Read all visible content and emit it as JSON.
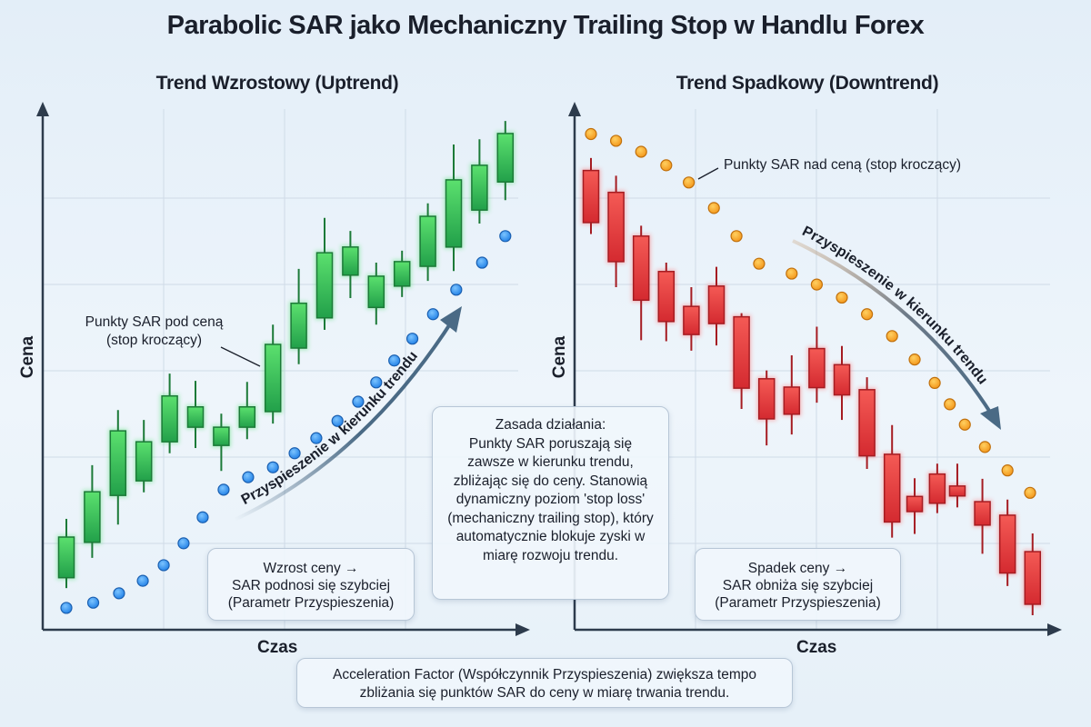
{
  "title": "Parabolic SAR jako Mechaniczny Trailing Stop w Handlu Forex",
  "colors": {
    "bullish": "#3cc75a",
    "bearish": "#e8383a",
    "sar_up": "#2b8ef0",
    "sar_down": "#f5a020",
    "axis": "#2d3b4c",
    "arrow": "#4a6a85"
  },
  "boxes": {
    "principle_title": "Zasada działania:",
    "principle_text": "Punkty SAR poruszają się zawsze w kierunku trendu, zbliżając się do ceny. Stanowią dynamiczny poziom 'stop loss' (mechaniczny trailing stop), który automatycznie blokuje zyski w miarę rozwoju trendu.",
    "footer": "Acceleration Factor (Współczynnik Przyspieszenia) zwiększa tempo zbliżania się punktów SAR do ceny w miarę trwania trendu."
  },
  "chart_data": [
    {
      "type": "candlestick",
      "title": "Trend Wzrostowy (Uptrend)",
      "xlabel": "Czas",
      "ylabel": "Cena",
      "annotation": "Punkty SAR pod ceną (stop kroczący)",
      "arrow_label": "Przyspieszenie w kierunku trendu",
      "note_lines": [
        "Wzrost ceny →",
        "SAR podnosi się szybciej",
        "(Parametr Przyspieszenia)"
      ],
      "grid": true,
      "ylim": [
        0,
        100
      ],
      "candles": [
        {
          "t": 0,
          "o": 10.0,
          "h": 21.3,
          "l": 8.0,
          "c": 17.8
        },
        {
          "t": 1,
          "o": 16.8,
          "h": 31.6,
          "l": 13.8,
          "c": 26.5
        },
        {
          "t": 2,
          "o": 25.8,
          "h": 42.2,
          "l": 20.2,
          "c": 38.2
        },
        {
          "t": 3,
          "o": 28.6,
          "h": 40.3,
          "l": 26.4,
          "c": 36.1
        },
        {
          "t": 4,
          "o": 36.1,
          "h": 49.2,
          "l": 33.9,
          "c": 44.9
        },
        {
          "t": 5,
          "o": 38.9,
          "h": 47.8,
          "l": 34.9,
          "c": 42.8
        },
        {
          "t": 6,
          "o": 35.4,
          "h": 41.5,
          "l": 30.5,
          "c": 38.9
        },
        {
          "t": 7,
          "o": 38.9,
          "h": 47.6,
          "l": 36.6,
          "c": 42.8
        },
        {
          "t": 8,
          "o": 41.9,
          "h": 58.6,
          "l": 39.6,
          "c": 54.8
        },
        {
          "t": 9,
          "o": 54.1,
          "h": 69.3,
          "l": 51.0,
          "c": 62.7
        },
        {
          "t": 10,
          "o": 59.9,
          "h": 79.1,
          "l": 57.6,
          "c": 72.4
        },
        {
          "t": 11,
          "o": 68.1,
          "h": 76.6,
          "l": 63.7,
          "c": 73.5
        },
        {
          "t": 12,
          "o": 61.9,
          "h": 70.5,
          "l": 58.6,
          "c": 67.9
        },
        {
          "t": 13,
          "o": 66.0,
          "h": 72.8,
          "l": 63.9,
          "c": 70.7
        },
        {
          "t": 14,
          "o": 69.8,
          "h": 81.9,
          "l": 67.0,
          "c": 79.4
        },
        {
          "t": 15,
          "o": 73.5,
          "h": 93.2,
          "l": 68.9,
          "c": 86.4
        },
        {
          "t": 16,
          "o": 80.6,
          "h": 94.2,
          "l": 78.0,
          "c": 89.2
        },
        {
          "t": 17,
          "o": 86.0,
          "h": 97.7,
          "l": 82.5,
          "c": 95.3
        }
      ],
      "sar": [
        {
          "t": 0,
          "v": 4.2
        },
        {
          "t": 1.04,
          "v": 5.2
        },
        {
          "t": 2.04,
          "v": 7.0
        },
        {
          "t": 2.96,
          "v": 9.4
        },
        {
          "t": 3.77,
          "v": 12.4
        },
        {
          "t": 4.54,
          "v": 16.6
        },
        {
          "t": 5.28,
          "v": 21.6
        },
        {
          "t": 6.09,
          "v": 26.9
        },
        {
          "t": 7.04,
          "v": 29.3
        },
        {
          "t": 8.0,
          "v": 31.2
        },
        {
          "t": 8.84,
          "v": 33.9
        },
        {
          "t": 9.68,
          "v": 36.8
        },
        {
          "t": 10.5,
          "v": 40.1
        },
        {
          "t": 11.3,
          "v": 43.8
        },
        {
          "t": 12.0,
          "v": 47.5
        },
        {
          "t": 12.7,
          "v": 51.7
        },
        {
          "t": 13.4,
          "v": 55.9
        },
        {
          "t": 14.2,
          "v": 60.6
        },
        {
          "t": 15.1,
          "v": 65.3
        },
        {
          "t": 16.1,
          "v": 70.5
        },
        {
          "t": 17.0,
          "v": 75.6
        }
      ]
    },
    {
      "type": "candlestick",
      "title": "Trend Spadkowy (Downtrend)",
      "xlabel": "Czas",
      "ylabel": "Cena",
      "annotation": "Punkty SAR nad ceną (stop kroczący)",
      "arrow_label": "Przyspieszenie w kierunku trendu",
      "note_lines": [
        "Spadek ceny →",
        "SAR obniża się szybciej",
        "(Parametr Przyspieszenia)"
      ],
      "grid": true,
      "ylim": [
        0,
        100
      ],
      "candles": [
        {
          "t": 0,
          "o": 88.2,
          "h": 90.6,
          "l": 76.0,
          "c": 78.2
        },
        {
          "t": 1,
          "o": 84.0,
          "h": 87.2,
          "l": 65.8,
          "c": 70.7
        },
        {
          "t": 2,
          "o": 75.6,
          "h": 77.6,
          "l": 55.6,
          "c": 63.3
        },
        {
          "t": 3,
          "o": 68.8,
          "h": 70.5,
          "l": 55.4,
          "c": 59.2
        },
        {
          "t": 4,
          "o": 62.1,
          "h": 65.8,
          "l": 53.6,
          "c": 56.7
        },
        {
          "t": 5,
          "o": 66.0,
          "h": 69.7,
          "l": 54.6,
          "c": 58.8
        },
        {
          "t": 6,
          "o": 60.1,
          "h": 60.8,
          "l": 42.4,
          "c": 46.4
        },
        {
          "t": 7,
          "o": 48.2,
          "h": 49.8,
          "l": 35.4,
          "c": 40.5
        },
        {
          "t": 8,
          "o": 46.6,
          "h": 52.7,
          "l": 37.5,
          "c": 41.4
        },
        {
          "t": 9,
          "o": 54.0,
          "h": 58.2,
          "l": 43.6,
          "c": 46.5
        },
        {
          "t": 10,
          "o": 50.9,
          "h": 54.5,
          "l": 40.3,
          "c": 45.1
        },
        {
          "t": 11,
          "o": 46.1,
          "h": 48.5,
          "l": 30.9,
          "c": 33.4
        },
        {
          "t": 12,
          "o": 33.7,
          "h": 39.3,
          "l": 17.7,
          "c": 20.7
        },
        {
          "t": 12.9,
          "o": 25.6,
          "h": 29.1,
          "l": 18.4,
          "c": 22.7
        },
        {
          "t": 13.8,
          "o": 29.9,
          "h": 31.9,
          "l": 22.4,
          "c": 24.3
        },
        {
          "t": 14.6,
          "o": 27.6,
          "h": 31.9,
          "l": 23.5,
          "c": 25.7
        },
        {
          "t": 15.6,
          "o": 24.6,
          "h": 29.0,
          "l": 14.6,
          "c": 20.1
        },
        {
          "t": 16.6,
          "o": 22.0,
          "h": 25.0,
          "l": 8.4,
          "c": 10.9
        },
        {
          "t": 17.6,
          "o": 15.0,
          "h": 18.5,
          "l": 2.8,
          "c": 4.9
        }
      ],
      "sar": [
        {
          "t": 0,
          "v": 95.2
        },
        {
          "t": 1.0,
          "v": 93.9
        },
        {
          "t": 2.0,
          "v": 91.8
        },
        {
          "t": 3.0,
          "v": 89.2
        },
        {
          "t": 3.9,
          "v": 85.9
        },
        {
          "t": 4.9,
          "v": 81.0
        },
        {
          "t": 5.8,
          "v": 75.6
        },
        {
          "t": 6.7,
          "v": 70.3
        },
        {
          "t": 8.0,
          "v": 68.4
        },
        {
          "t": 9.0,
          "v": 66.3
        },
        {
          "t": 10.0,
          "v": 63.8
        },
        {
          "t": 11.0,
          "v": 60.6
        },
        {
          "t": 12.0,
          "v": 56.4
        },
        {
          "t": 12.9,
          "v": 51.9
        },
        {
          "t": 13.7,
          "v": 47.4
        },
        {
          "t": 14.3,
          "v": 43.3
        },
        {
          "t": 14.9,
          "v": 39.4
        },
        {
          "t": 15.7,
          "v": 35.1
        },
        {
          "t": 16.6,
          "v": 30.6
        },
        {
          "t": 17.5,
          "v": 26.3
        }
      ]
    }
  ]
}
